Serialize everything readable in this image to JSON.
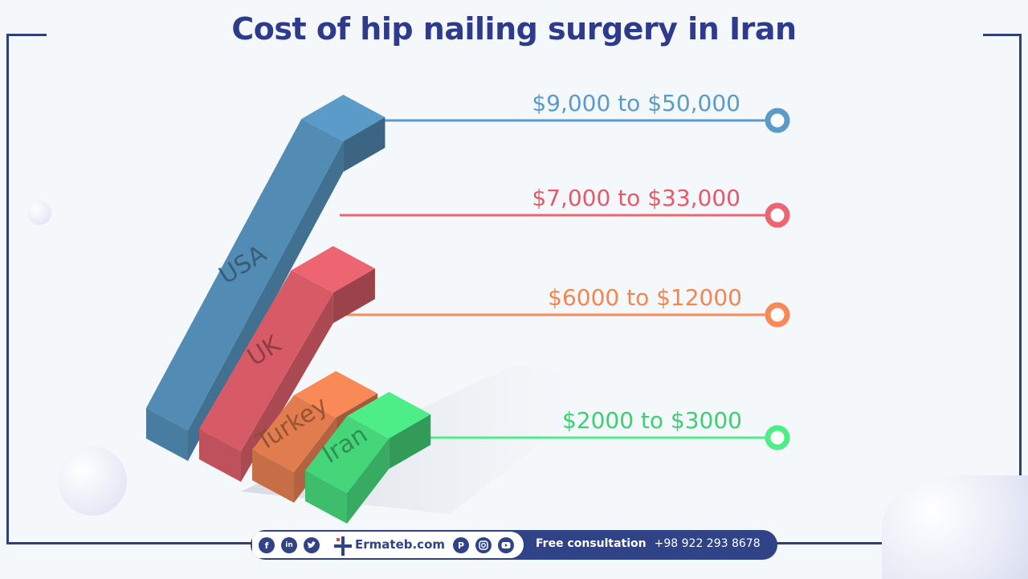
{
  "title": "Cost of hip nailing surgery in Iran",
  "chart_data": {
    "type": "bar",
    "categories": [
      "USA",
      "UK",
      "Turkey",
      "Iran"
    ],
    "series": [
      {
        "values": [
          [
            9000,
            50000
          ],
          [
            7000,
            33000
          ],
          [
            6000,
            12000
          ],
          [
            2000,
            3000
          ]
        ]
      }
    ],
    "labels": [
      "$9,000 to $50,000",
      "$7,000 to $33,000",
      "$6000 to $12000",
      "$2000 to $3000"
    ],
    "colors": [
      "#5b9bc9",
      "#ee6572",
      "#f98a57",
      "#4dee88"
    ],
    "label_colors": [
      "#5b9bc9",
      "#e35a68",
      "#f28552",
      "#3dcf72"
    ],
    "legend": "none"
  },
  "footer": {
    "social": [
      "f",
      "in",
      "t",
      "p",
      "ig",
      "yt"
    ],
    "site": "Ermateb.com",
    "consult_label": "Free consultation",
    "phone": "+98 922 293 8678"
  }
}
